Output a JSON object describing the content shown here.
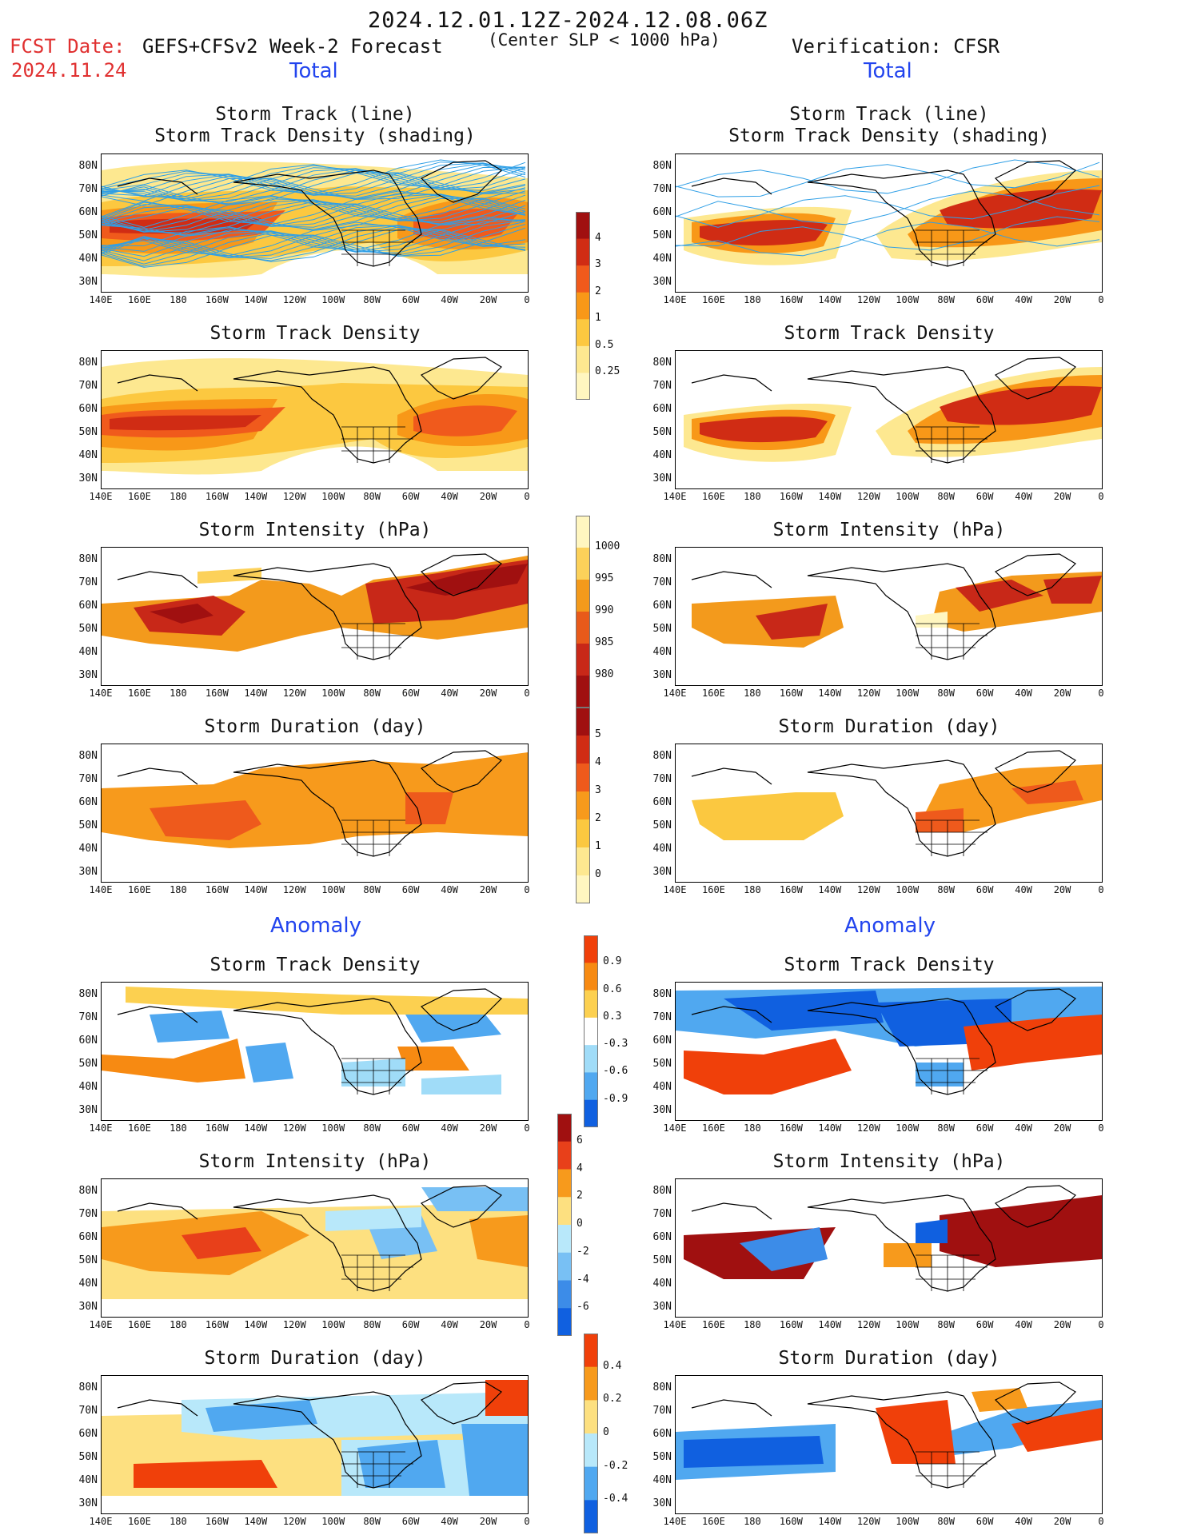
{
  "header": {
    "period": "2024.12.01.12Z-2024.12.08.06Z",
    "fcst_label": "FCST Date:",
    "fcst_date": "2024.11.24",
    "model": "GEFS+CFSv2 Week-2 Forecast",
    "criterion": "(Center SLP < 1000 hPa)",
    "verification": "Verification: CFSR"
  },
  "sections": {
    "total_left": "Total",
    "total_right": "Total",
    "anomaly_left": "Anomaly",
    "anomaly_right": "Anomaly"
  },
  "panel_titles": {
    "track_line": "Storm Track (line)",
    "track_shading": "Storm Track Density (shading)",
    "density": "Storm Track Density",
    "intensity": "Storm Intensity (hPa)",
    "duration": "Storm Duration (day)"
  },
  "axes": {
    "lat_labels": [
      "80N",
      "70N",
      "60N",
      "50N",
      "40N",
      "30N"
    ],
    "lon_labels": [
      "140E",
      "160E",
      "180",
      "160W",
      "140W",
      "120W",
      "100W",
      "80W",
      "60W",
      "40W",
      "20W",
      "0"
    ]
  },
  "colorbars": {
    "density_total": {
      "labels": [
        "4",
        "3",
        "2",
        "1",
        "0.5",
        "0.25"
      ],
      "colors": [
        "#a01010",
        "#d02c14",
        "#f05a1c",
        "#f89818",
        "#fcc840",
        "#fde890",
        "#fff6c0"
      ]
    },
    "intensity_total": {
      "labels": [
        "1000",
        "995",
        "990",
        "985",
        "980"
      ],
      "colors": [
        "#fff6c0",
        "#fcd15a",
        "#f39a1c",
        "#e85a1a",
        "#c82818",
        "#a01010"
      ]
    },
    "duration_total": {
      "labels": [
        "5",
        "4",
        "3",
        "2",
        "1",
        "0"
      ],
      "colors": [
        "#a01010",
        "#d02c14",
        "#ee5a1c",
        "#f79a1c",
        "#fbc840",
        "#fde890",
        "#fff6c0"
      ]
    },
    "density_anom": {
      "labels": [
        "0.9",
        "0.6",
        "0.3",
        "-0.3",
        "-0.6",
        "-0.9"
      ],
      "colors": [
        "#f0400a",
        "#f78a12",
        "#fcd050",
        "#ffffff",
        "#a0dcf8",
        "#50a8f0",
        "#1060e0"
      ]
    },
    "intensity_anom": {
      "labels": [
        "6",
        "4",
        "2",
        "0",
        "-2",
        "-4",
        "-6"
      ],
      "colors": [
        "#a01010",
        "#e8401a",
        "#f79a1c",
        "#fde080",
        "#b8e8fa",
        "#78c0f4",
        "#3c8ce8",
        "#1060e0"
      ]
    },
    "duration_anom": {
      "labels": [
        "0.4",
        "0.2",
        "0",
        "-0.2",
        "-0.4"
      ],
      "colors": [
        "#f0400a",
        "#f79a1c",
        "#fde080",
        "#b8e8fa",
        "#50a8f0",
        "#1060e0"
      ]
    }
  }
}
